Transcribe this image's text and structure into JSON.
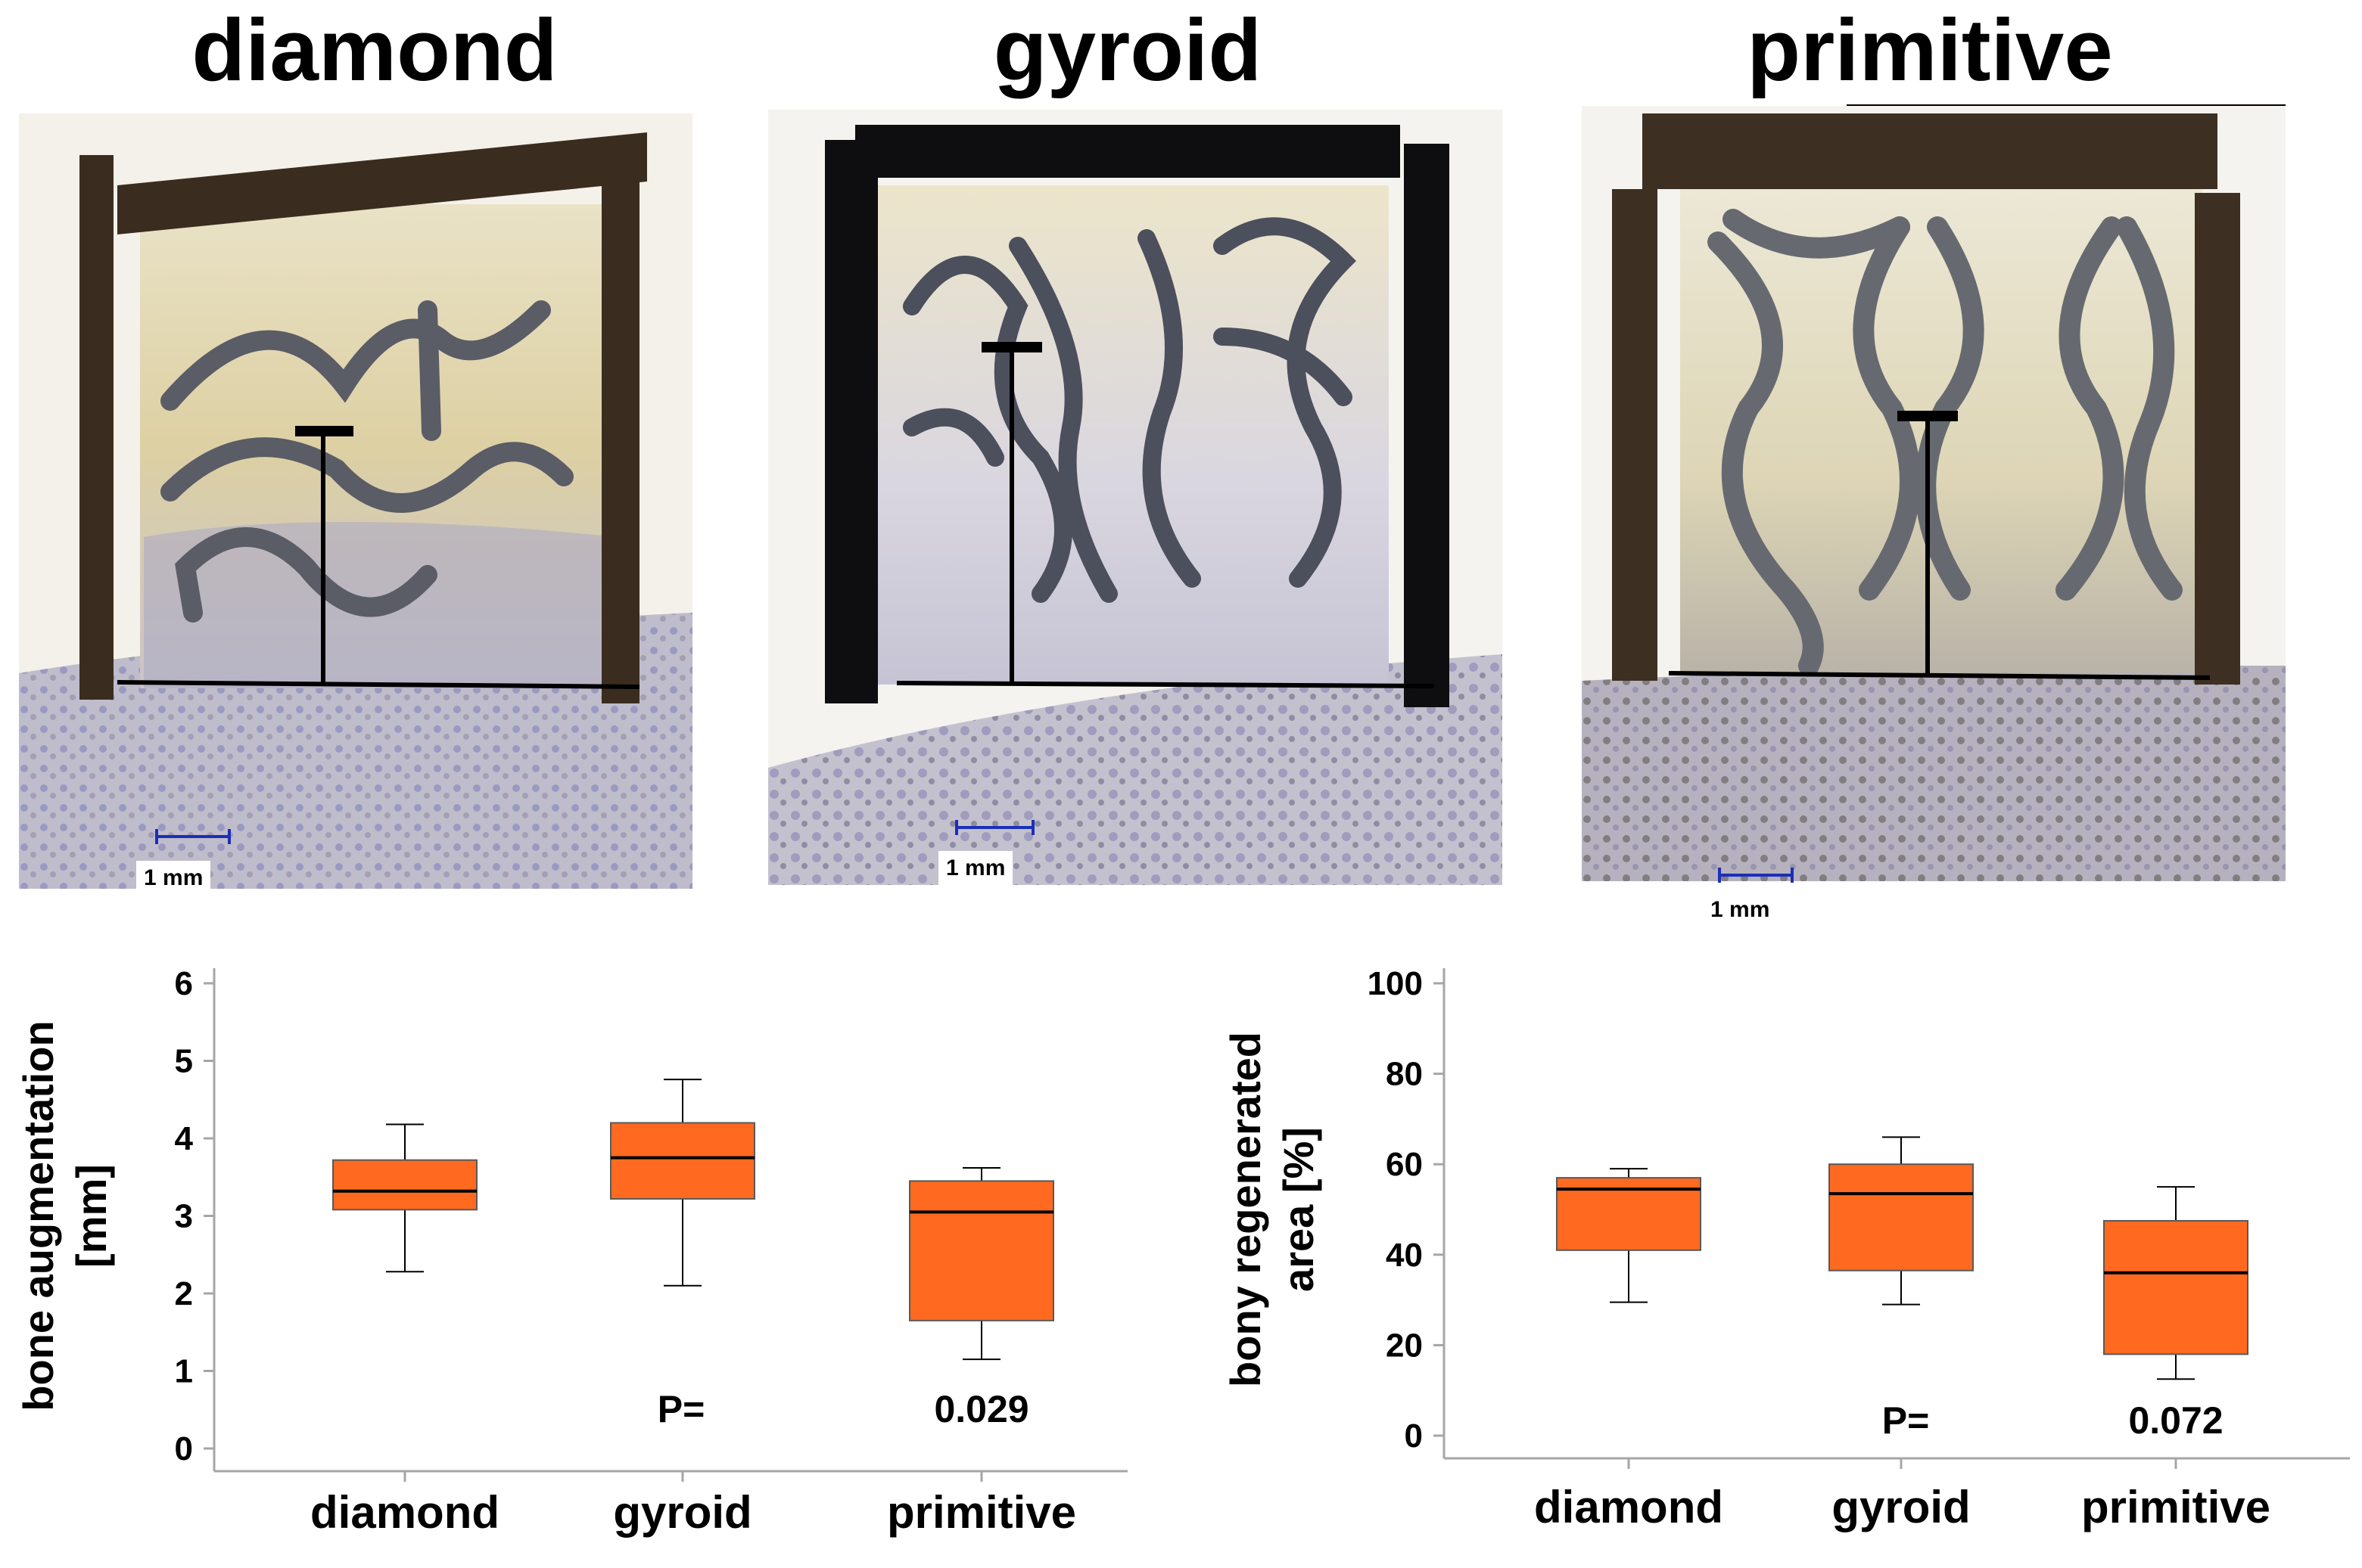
{
  "panels": [
    {
      "title": "diamond",
      "scale_label": "1 mm"
    },
    {
      "title": "gyroid",
      "scale_label": "1 mm"
    },
    {
      "title": "primitive",
      "scale_label": "1 mm"
    }
  ],
  "colors": {
    "box_fill": "#FF6A20",
    "box_stroke": "#595959",
    "scale_bar": "#1B2FB8"
  },
  "chart_data": [
    {
      "type": "box",
      "categories": [
        "diamond",
        "gyroid",
        "primitive"
      ],
      "ylabel": "bone augmentation [mm]",
      "ylabel_lines": [
        "bone augmentation",
        "[mm]"
      ],
      "ylim": [
        0,
        6
      ],
      "yticks": [
        0,
        1,
        2,
        3,
        4,
        5,
        6
      ],
      "boxes": [
        {
          "name": "diamond",
          "min": 2.28,
          "q1": 3.08,
          "median": 3.32,
          "q3": 3.72,
          "max": 4.18
        },
        {
          "name": "gyroid",
          "min": 2.1,
          "q1": 3.22,
          "median": 3.75,
          "q3": 4.2,
          "max": 4.76
        },
        {
          "name": "primitive",
          "min": 1.15,
          "q1": 1.65,
          "median": 3.05,
          "q3": 3.45,
          "max": 3.62
        }
      ],
      "annotation": {
        "p_label": "P=",
        "p_value": "0.029"
      }
    },
    {
      "type": "box",
      "categories": [
        "diamond",
        "gyroid",
        "primitive"
      ],
      "ylabel": "bony regenerated area [%]",
      "ylabel_lines": [
        "bony regenerated",
        "area [%]"
      ],
      "ylim": [
        0,
        100
      ],
      "yticks": [
        0,
        20,
        40,
        60,
        80,
        100
      ],
      "boxes": [
        {
          "name": "diamond",
          "min": 29.5,
          "q1": 41,
          "median": 54.5,
          "q3": 57,
          "max": 59
        },
        {
          "name": "gyroid",
          "min": 29,
          "q1": 36.5,
          "median": 53.5,
          "q3": 60,
          "max": 66
        },
        {
          "name": "primitive",
          "min": 12.5,
          "q1": 18,
          "median": 36,
          "q3": 47.5,
          "max": 55
        }
      ],
      "annotation": {
        "p_label": "P=",
        "p_value": "0.072"
      }
    }
  ]
}
